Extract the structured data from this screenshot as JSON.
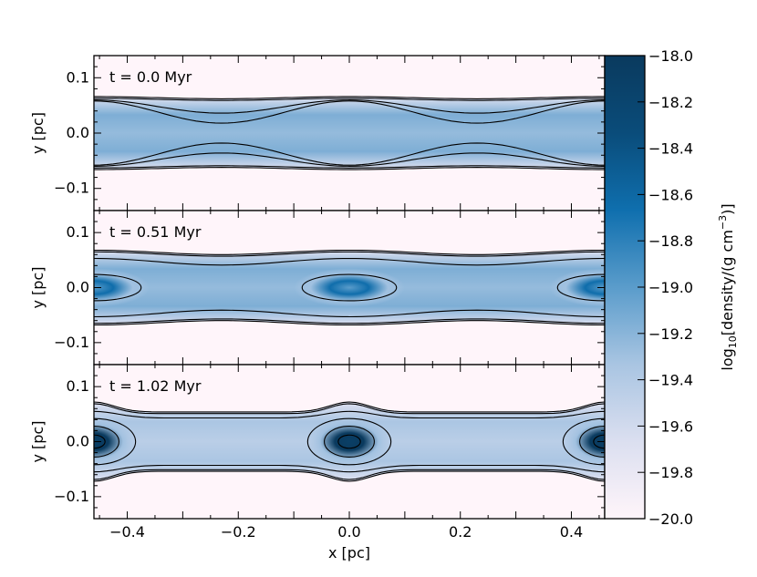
{
  "chart_data": {
    "type": "heatmap",
    "xlabel": "x [pc]",
    "ylabel": "y [pc]",
    "xlim": [
      -0.46,
      0.46
    ],
    "ylim": [
      -0.14,
      0.14
    ],
    "x_ticks": [
      -0.4,
      -0.2,
      0.0,
      0.2,
      0.4
    ],
    "x_tick_labels": [
      "−0.4",
      "−0.2",
      "0.0",
      "0.2",
      "0.4"
    ],
    "y_ticks": [
      0.1,
      0.0,
      -0.1
    ],
    "y_tick_labels": [
      "0.1",
      "0.0",
      "−0.1"
    ],
    "panels": [
      {
        "label": "t = 0.0 Myr",
        "time_myr": 0.0,
        "core_positions": [],
        "peak_log_density": -19.2
      },
      {
        "label": "t = 0.51 Myr",
        "time_myr": 0.51,
        "core_positions": [
          -0.46,
          0.0,
          0.46
        ],
        "peak_log_density": -19.0
      },
      {
        "label": "t = 1.02 Myr",
        "time_myr": 1.02,
        "core_positions": [
          -0.46,
          0.0,
          0.46
        ],
        "peak_log_density": -18.1
      }
    ],
    "colorbar": {
      "label": "log10[density/(g cm−3)]",
      "label_main": "log",
      "label_sub": "10",
      "label_mid": "[density/(g cm",
      "label_sup": "−3",
      "label_end": ")]",
      "range": [
        -20.0,
        -18.0
      ],
      "ticks": [
        -18.0,
        -18.2,
        -18.4,
        -18.6,
        -18.8,
        -19.0,
        -19.2,
        -19.4,
        -19.6,
        -19.8,
        -20.0
      ],
      "tick_labels": [
        "−18.0",
        "−18.2",
        "−18.4",
        "−18.6",
        "−18.8",
        "−19.0",
        "−19.2",
        "−19.4",
        "−19.6",
        "−19.8",
        "−20.0"
      ],
      "colormap": [
        "#fff5fa",
        "#dbdff0",
        "#a9c5e2",
        "#5a9ccb",
        "#0f6fae",
        "#0a4c7a",
        "#0a3a5e"
      ]
    }
  }
}
